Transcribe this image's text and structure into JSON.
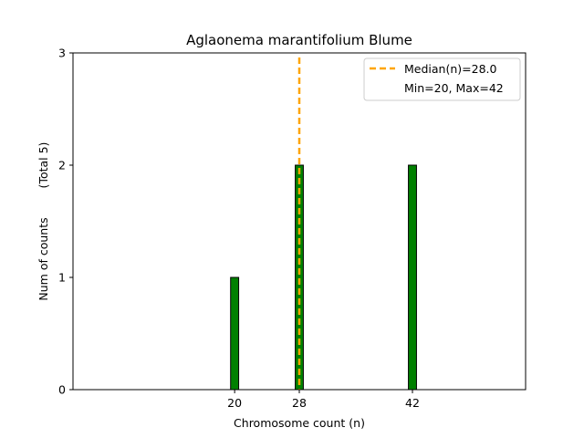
{
  "chart_data": {
    "type": "bar",
    "title": "Aglaonema marantifolium Blume",
    "xlabel": "Chromosome count (n)",
    "ylabel": "Num of counts",
    "ylabel_note": "(Total 5)",
    "x_ticks": [
      20,
      28,
      42
    ],
    "y_ticks": [
      0,
      1,
      2,
      3
    ],
    "xlim": [
      0,
      56
    ],
    "ylim": [
      0,
      3
    ],
    "bars": [
      {
        "x": 20,
        "value": 1
      },
      {
        "x": 28,
        "value": 2
      },
      {
        "x": 42,
        "value": 2
      }
    ],
    "bar_width": 1,
    "bar_color": "#008000",
    "bar_edge_color": "#000000",
    "median": 28.0,
    "median_color": "#FFA500",
    "legend": {
      "placement": "top-right",
      "median_label": "Median(n)=28.0",
      "range_label": "Min=20, Max=42"
    },
    "grid": false
  }
}
